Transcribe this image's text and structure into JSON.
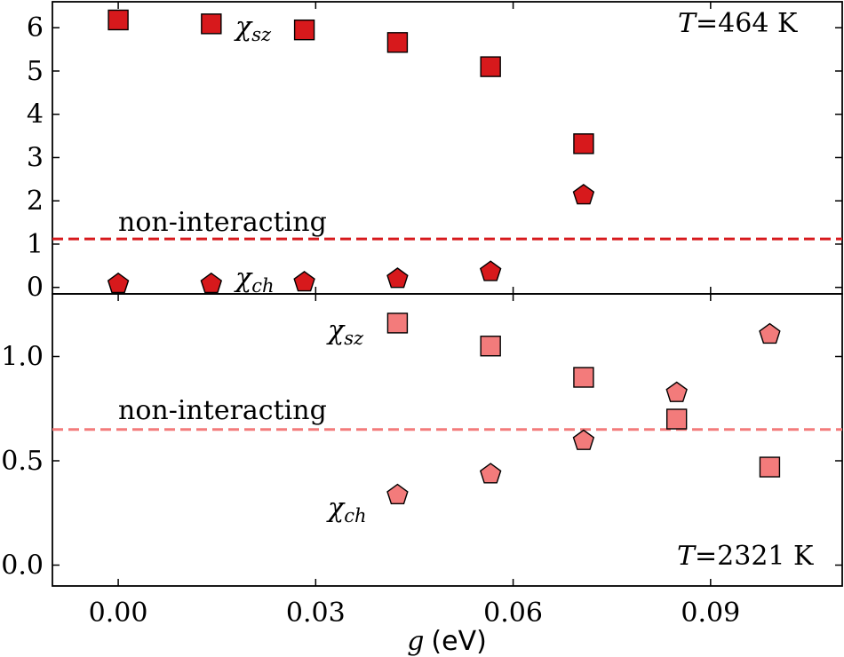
{
  "chart_data": [
    {
      "type": "scatter",
      "panel": "top",
      "temperature_label": {
        "symbol": "T",
        "eq": "=",
        "value": "464 K"
      },
      "xlim": [
        -0.01,
        0.11
      ],
      "ylim": [
        -0.15,
        6.6
      ],
      "yticks": [
        {
          "value": 0,
          "label": "0"
        },
        {
          "value": 1,
          "label": "1"
        },
        {
          "value": 2,
          "label": "2"
        },
        {
          "value": 3,
          "label": "3"
        },
        {
          "value": 4,
          "label": "4"
        },
        {
          "value": 5,
          "label": "5"
        },
        {
          "value": 6,
          "label": "6"
        }
      ],
      "series": [
        {
          "name": "chi_sz",
          "marker": "square",
          "color": "#d7191c",
          "x": [
            0.0,
            0.01414,
            0.02828,
            0.04243,
            0.05657,
            0.07071
          ],
          "y": [
            6.18,
            6.09,
            5.95,
            5.66,
            5.1,
            3.32
          ]
        },
        {
          "name": "chi_ch",
          "marker": "pentagon",
          "color": "#d7191c",
          "x": [
            0.0,
            0.01414,
            0.02828,
            0.04243,
            0.05657,
            0.07071
          ],
          "y": [
            0.1,
            0.1,
            0.14,
            0.22,
            0.38,
            2.15
          ]
        }
      ],
      "reference_line": {
        "name": "non-interacting",
        "y": 1.12,
        "color": "#d7191c",
        "style": "dashed"
      },
      "annotations": {
        "noninteracting": "non-interacting",
        "sz_main": "χ",
        "sz_sub": "sz",
        "ch_main": "χ",
        "ch_sub": "ch"
      }
    },
    {
      "type": "scatter",
      "panel": "bottom",
      "temperature_label": {
        "symbol": "T",
        "eq": "=",
        "value": "2321 K"
      },
      "xlim": [
        -0.01,
        0.11
      ],
      "ylim": [
        -0.1,
        1.3
      ],
      "xticks": [
        {
          "value": 0.0,
          "label": "0.00"
        },
        {
          "value": 0.03,
          "label": "0.03"
        },
        {
          "value": 0.06,
          "label": "0.06"
        },
        {
          "value": 0.09,
          "label": "0.09"
        }
      ],
      "yticks": [
        {
          "value": 0.0,
          "label": "0.0"
        },
        {
          "value": 0.5,
          "label": "0.5"
        },
        {
          "value": 1.0,
          "label": "1.0"
        }
      ],
      "xlabel": {
        "symbol": "g",
        "unit": "(eV)"
      },
      "series": [
        {
          "name": "chi_sz",
          "marker": "square",
          "color": "#f37b7b",
          "x": [
            0.04243,
            0.05657,
            0.07071,
            0.08485,
            0.09899
          ],
          "y": [
            1.16,
            1.05,
            0.9,
            0.7,
            0.47
          ]
        },
        {
          "name": "chi_ch",
          "marker": "pentagon",
          "color": "#f37b7b",
          "x": [
            0.04243,
            0.05657,
            0.07071,
            0.08485,
            0.09899
          ],
          "y": [
            0.34,
            0.44,
            0.6,
            0.83,
            1.11
          ]
        }
      ],
      "reference_line": {
        "name": "non-interacting",
        "y": 0.65,
        "color": "#f37b7b",
        "style": "dashed"
      },
      "annotations": {
        "noninteracting": "non-interacting",
        "sz_main": "χ",
        "sz_sub": "sz",
        "ch_main": "χ",
        "ch_sub": "ch"
      }
    }
  ]
}
